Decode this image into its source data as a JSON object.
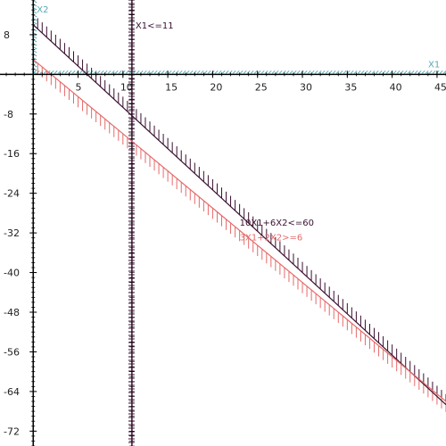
{
  "chart_data": {
    "type": "line",
    "title": "",
    "xlabel": "X1",
    "ylabel": "X2",
    "xlim": [
      -3.7,
      46
    ],
    "ylim": [
      -75,
      15
    ],
    "x_ticks": [
      5,
      10,
      15,
      20,
      25,
      30,
      35,
      40,
      45
    ],
    "y_ticks": [
      8,
      -8,
      -16,
      -24,
      -32,
      -40,
      -48,
      -56,
      -64,
      -72
    ],
    "grid": false,
    "colors": {
      "axis_hatch": "#55a9b3",
      "constraint_dark": "#3a1030",
      "constraint_red": "#e66a6a",
      "axis_line": "#000000"
    },
    "series": [
      {
        "name": "X1<=11",
        "kind": "vertical",
        "x": 11,
        "color": "#3a1030"
      },
      {
        "name": "10X1+6X2<=60",
        "kind": "line",
        "x": [
          0,
          46
        ],
        "y": [
          10,
          -66.67
        ],
        "color": "#3a1030"
      },
      {
        "name": "3X1+2X2>=6",
        "kind": "line",
        "x": [
          0,
          46
        ],
        "y": [
          3,
          -66
        ],
        "color": "#e66a6a"
      }
    ]
  }
}
